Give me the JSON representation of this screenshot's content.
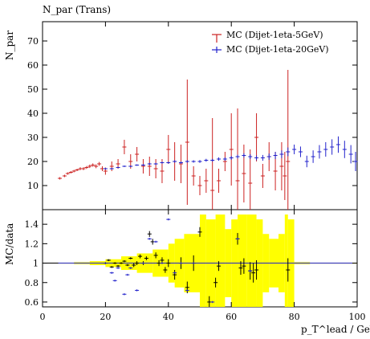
{
  "page_title": "N_par (Trans)",
  "colors": {
    "red": "#cc2222",
    "blue": "#2222cc",
    "band": "#ffff00",
    "axis": "#000000"
  },
  "chart_data": [
    {
      "type": "scatter",
      "panel": "main",
      "title": "N_par (Trans)",
      "ylabel": "N_par",
      "xlabel": "",
      "xlim": [
        0,
        100
      ],
      "ylim": [
        0,
        78
      ],
      "yticks": [
        10,
        20,
        30,
        40,
        50,
        60,
        70
      ],
      "legend": {
        "placement": "top-right"
      },
      "series": [
        {
          "name": "MC (Dijet-1eta-5GeV)",
          "color": "#cc2222",
          "x": [
            5.5,
            7,
            8,
            9,
            10,
            11,
            12,
            13,
            14,
            15,
            16,
            17,
            18,
            19,
            20,
            22,
            24,
            26,
            28,
            30,
            32,
            34,
            36,
            38,
            40,
            42,
            44,
            46,
            48,
            50,
            52,
            54,
            56,
            58,
            60,
            62,
            64,
            66,
            68,
            70,
            72,
            74,
            76,
            77,
            78
          ],
          "y": [
            13,
            14,
            15,
            15.5,
            16,
            16.5,
            17,
            17,
            17.5,
            18,
            18.5,
            18,
            19,
            17,
            16,
            18,
            19,
            26,
            20,
            23,
            18,
            18,
            17,
            16,
            25,
            20,
            19,
            28,
            14,
            10,
            12,
            8,
            12,
            20,
            25,
            12,
            15,
            11,
            30,
            14,
            22,
            16,
            18,
            14,
            20
          ],
          "err": [
            0.5,
            0.5,
            0.5,
            0.5,
            0.5,
            0.5,
            0.6,
            0.6,
            0.6,
            0.7,
            0.7,
            0.8,
            0.8,
            1,
            1.5,
            2,
            2,
            3,
            3,
            3,
            3,
            4,
            4,
            5,
            6,
            8,
            8,
            26,
            4,
            4,
            5,
            30,
            5,
            4,
            15,
            30,
            12,
            14,
            10,
            5,
            6,
            8,
            10,
            10,
            38
          ]
        },
        {
          "name": "MC (Dijet-1eta-20GeV)",
          "color": "#2222cc",
          "x": [
            20,
            22,
            24,
            26,
            28,
            30,
            32,
            34,
            36,
            38,
            40,
            42,
            44,
            46,
            48,
            50,
            52,
            54,
            56,
            58,
            60,
            62,
            64,
            66,
            68,
            70,
            72,
            74,
            76,
            78,
            80,
            82,
            84,
            86,
            88,
            90,
            92,
            94,
            96,
            98,
            99.5
          ],
          "y": [
            17,
            17,
            17.5,
            18,
            18,
            18.5,
            18.5,
            19,
            19,
            19.5,
            19.5,
            20,
            19.5,
            20,
            20,
            20,
            20.5,
            20.5,
            21,
            21,
            21.5,
            22,
            22.5,
            22,
            21.5,
            21.5,
            22,
            22.5,
            23,
            24,
            25,
            24,
            20,
            22,
            24,
            25,
            26,
            27,
            25,
            23,
            20
          ],
          "err": [
            0.3,
            0.3,
            0.3,
            0.3,
            0.3,
            0.3,
            0.4,
            0.4,
            0.4,
            0.4,
            0.4,
            0.5,
            0.5,
            0.5,
            0.5,
            0.6,
            0.6,
            0.6,
            0.7,
            0.7,
            0.8,
            0.8,
            0.9,
            1,
            1,
            1.2,
            1.3,
            1.5,
            1.6,
            1.8,
            2,
            2.2,
            2.4,
            2.6,
            2.8,
            3,
            3.2,
            3.4,
            3.6,
            3.8,
            4
          ]
        }
      ]
    },
    {
      "type": "scatter",
      "panel": "ratio",
      "ylabel": "MC/data",
      "xlabel": "p_T^lead / GeV",
      "xlim": [
        0,
        100
      ],
      "ylim": [
        0.55,
        1.55
      ],
      "yticks": [
        0.6,
        0.8,
        1,
        1.2,
        1.4
      ],
      "xticks": [
        0,
        20,
        40,
        60,
        80,
        100
      ],
      "reference_line": 1,
      "band": {
        "x": [
          5,
          10,
          15,
          20,
          25,
          30,
          35,
          40,
          42,
          45,
          50,
          52,
          55,
          58,
          60,
          62,
          65,
          68,
          70,
          72,
          75,
          77,
          78,
          80,
          85,
          90,
          95,
          100
        ],
        "half_width": [
          0.005,
          0.01,
          0.02,
          0.04,
          0.07,
          0.1,
          0.14,
          0.2,
          0.25,
          0.3,
          0.5,
          0.45,
          0.5,
          0.35,
          0.45,
          0.5,
          0.5,
          0.45,
          0.3,
          0.25,
          0.3,
          0.5,
          0.45,
          0.01,
          0.005,
          0.005,
          0.005,
          0.005
        ]
      },
      "series": [
        {
          "name": "MC (Dijet-1eta-5GeV)",
          "color": "#000000",
          "x": [
            20,
            21,
            22,
            23,
            24,
            25,
            26,
            27,
            28,
            29,
            30,
            31,
            32,
            33,
            34,
            35,
            36,
            37,
            38,
            39,
            40,
            42,
            44,
            46,
            48,
            50,
            53,
            55,
            56,
            62,
            63,
            64,
            66,
            67,
            68,
            78
          ],
          "y": [
            1.0,
            1.03,
            0.96,
            1.0,
            0.97,
            1.0,
            1.02,
            0.98,
            1.05,
            0.98,
            1.0,
            1.07,
            1.0,
            1.05,
            1.3,
            1.22,
            1.08,
            1.0,
            1.03,
            0.93,
            1.0,
            0.88,
            1.0,
            0.75,
            1.0,
            1.32,
            0.6,
            0.8,
            0.97,
            1.25,
            0.95,
            0.97,
            0.92,
            0.9,
            0.93,
            0.93
          ],
          "err": [
            0.01,
            0.01,
            0.01,
            0.01,
            0.01,
            0.01,
            0.01,
            0.01,
            0.01,
            0.02,
            0.02,
            0.02,
            0.02,
            0.02,
            0.03,
            0.03,
            0.03,
            0.03,
            0.03,
            0.03,
            0.04,
            0.05,
            0.06,
            0.06,
            0.08,
            0.05,
            0.06,
            0.05,
            0.05,
            0.06,
            0.07,
            0.08,
            0.09,
            0.1,
            0.1,
            0.12
          ]
        },
        {
          "name": "MC (Dijet-1eta-20GeV)",
          "color": "#2222cc",
          "x": [
            20,
            22,
            23,
            24,
            26,
            27,
            28,
            30,
            32,
            34,
            36,
            38,
            40,
            42,
            44,
            46,
            48,
            54,
            62,
            66
          ],
          "y": [
            1.0,
            0.9,
            0.82,
            0.95,
            0.68,
            0.88,
            0.95,
            0.72,
            1.0,
            1.25,
            1.22,
            1.0,
            1.45,
            0.9,
            1.0,
            0.72,
            1.0,
            0.6,
            1.25,
            0.92
          ],
          "err": [
            0.01,
            0.01,
            0.01,
            0.01,
            0.01,
            0.01,
            0.01,
            0.01,
            0.01,
            0.01,
            0.01,
            0.01,
            0.01,
            0.01,
            0.01,
            0.01,
            0.01,
            0.01,
            0.01,
            0.01
          ]
        }
      ]
    }
  ]
}
